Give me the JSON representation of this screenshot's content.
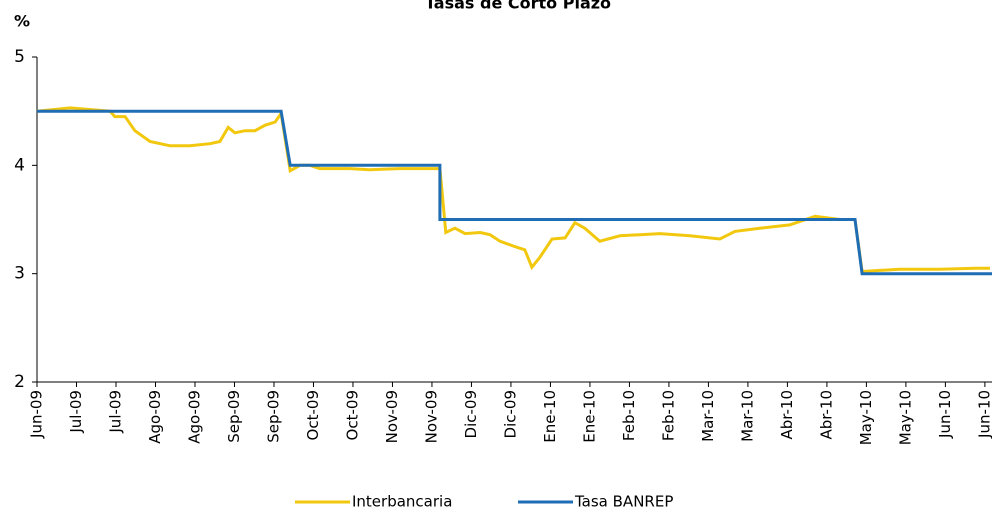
{
  "chart_data": {
    "type": "line",
    "title": "Tasas de Corto Plazo",
    "y_label": "%",
    "xlim": [
      0,
      24.18
    ],
    "ylim": [
      2,
      5
    ],
    "yticks": [
      2,
      3,
      4,
      5
    ],
    "xticks": [
      {
        "value": 0,
        "label": "Jun-09"
      },
      {
        "value": 1,
        "label": "Jul-09"
      },
      {
        "value": 2,
        "label": "Jul-09"
      },
      {
        "value": 3,
        "label": "Ago-09"
      },
      {
        "value": 4,
        "label": "Ago-09"
      },
      {
        "value": 5,
        "label": "Sep-09"
      },
      {
        "value": 6,
        "label": "Sep-09"
      },
      {
        "value": 7,
        "label": "Oct-09"
      },
      {
        "value": 8,
        "label": "Oct-09"
      },
      {
        "value": 9,
        "label": "Nov-09"
      },
      {
        "value": 10,
        "label": "Nov-09"
      },
      {
        "value": 11,
        "label": "Dic-09"
      },
      {
        "value": 12,
        "label": "Dic-09"
      },
      {
        "value": 13,
        "label": "Ene-10"
      },
      {
        "value": 14,
        "label": "Ene-10"
      },
      {
        "value": 15,
        "label": "Feb-10"
      },
      {
        "value": 16,
        "label": "Feb-10"
      },
      {
        "value": 17,
        "label": "Mar-10"
      },
      {
        "value": 18,
        "label": "Mar-10"
      },
      {
        "value": 19,
        "label": "Abr-10"
      },
      {
        "value": 20,
        "label": "Abr-10"
      },
      {
        "value": 21,
        "label": "May-10"
      },
      {
        "value": 22,
        "label": "May-10"
      },
      {
        "value": 23,
        "label": "Jun-10"
      },
      {
        "value": 24,
        "label": "Jun-10"
      }
    ],
    "series": [
      {
        "name": "Interbancaria",
        "color": "#f2c80f",
        "x": [
          0,
          0.84,
          1.85,
          1.97,
          2.23,
          2.48,
          2.86,
          3.37,
          3.87,
          4.38,
          4.63,
          4.84,
          5.01,
          5.27,
          5.52,
          5.77,
          6.03,
          6.18,
          6.41,
          6.66,
          6.91,
          7.16,
          7.92,
          8.43,
          9.19,
          10.2,
          10.35,
          10.58,
          10.84,
          11.22,
          11.47,
          11.72,
          12.1,
          12.35,
          12.53,
          12.73,
          13.04,
          13.37,
          13.62,
          13.87,
          14.25,
          14.76,
          15.27,
          15.77,
          16.53,
          17.29,
          17.67,
          18.3,
          19.06,
          19.7,
          20.33,
          20.71,
          20.89,
          21.34,
          21.85,
          22.86,
          23.75,
          24.13
        ],
        "values": [
          4.5,
          4.53,
          4.5,
          4.45,
          4.45,
          4.32,
          4.22,
          4.18,
          4.18,
          4.2,
          4.22,
          4.35,
          4.3,
          4.32,
          4.32,
          4.37,
          4.4,
          4.48,
          3.95,
          4.0,
          4.0,
          3.97,
          3.97,
          3.96,
          3.97,
          3.97,
          3.38,
          3.42,
          3.37,
          3.38,
          3.36,
          3.3,
          3.25,
          3.22,
          3.06,
          3.15,
          3.32,
          3.33,
          3.47,
          3.42,
          3.3,
          3.35,
          3.36,
          3.37,
          3.35,
          3.32,
          3.39,
          3.42,
          3.45,
          3.53,
          3.5,
          3.5,
          3.02,
          3.03,
          3.04,
          3.04,
          3.05,
          3.05
        ]
      },
      {
        "name": "Tasa BANREP",
        "color": "#1f6db5",
        "x": [
          0,
          6.18,
          6.41,
          10.2,
          10.2,
          20.71,
          20.89,
          24.18
        ],
        "values": [
          4.5,
          4.5,
          4.0,
          4.0,
          3.5,
          3.5,
          3.0,
          3.0
        ]
      }
    ]
  }
}
